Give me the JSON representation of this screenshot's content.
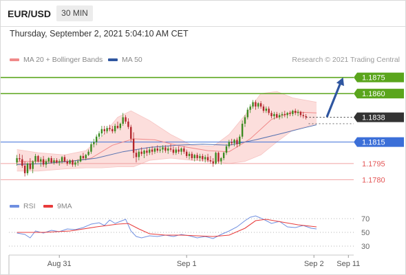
{
  "header": {
    "pair": "EUR/USD",
    "timeframe": "30 MIN"
  },
  "datetime": "Thursday, September 2, 2021 5:04:10 AM CET",
  "legend": {
    "ma20_label": "MA 20 + Bollinger Bands",
    "ma50_label": "MA 50",
    "ma20_color": "#f08a8a",
    "ma50_color": "#2f56a0"
  },
  "credit": "Research © 2021 Trading Central",
  "rsi_legend": {
    "rsi_label": "RSI",
    "ma_label": "9MA",
    "rsi_color": "#6f8fe0",
    "ma_color": "#e83b3b"
  },
  "chart_data": [
    {
      "type": "candlestick",
      "y_range": [
        1.177,
        1.1885
      ],
      "x_ticks": [
        {
          "label": "Aug 31",
          "x": 16
        },
        {
          "label": "Sep 1",
          "x": 64
        },
        {
          "label": "Sep 2",
          "x": 112
        },
        {
          "label": "Sep 11",
          "x": 125
        }
      ],
      "x_range": [
        -3,
        127
      ],
      "levels": [
        {
          "value": 1.1875,
          "label": "1.1875",
          "kind": "resistance",
          "color": "#5aa51c"
        },
        {
          "value": 1.186,
          "label": "1.1860",
          "kind": "resistance",
          "color": "#5aa51c"
        },
        {
          "value": 1.1838,
          "label": "1.1838",
          "kind": "last",
          "color": "#333333"
        },
        {
          "value": 1.1815,
          "label": "1.1815",
          "kind": "pivot",
          "color": "#3b6fd8"
        },
        {
          "value": 1.1795,
          "label": "1.1795",
          "kind": "support",
          "color": "#e35656"
        },
        {
          "value": 1.178,
          "label": "1.1780",
          "kind": "support",
          "color": "#e35656"
        }
      ],
      "target_arrow": {
        "from": [
          117,
          1.1839
        ],
        "to": [
          123,
          1.1875
        ]
      },
      "candles": [
        [
          1.1796,
          1.1803,
          1.1793,
          1.18
        ],
        [
          1.18,
          1.1804,
          1.1797,
          1.1799
        ],
        [
          1.1799,
          1.1803,
          1.1791,
          1.1793
        ],
        [
          1.1793,
          1.1797,
          1.1783,
          1.1786
        ],
        [
          1.1786,
          1.1796,
          1.1784,
          1.1795
        ],
        [
          1.1795,
          1.18,
          1.1789,
          1.179
        ],
        [
          1.179,
          1.1798,
          1.1786,
          1.1797
        ],
        [
          1.1797,
          1.1804,
          1.1795,
          1.1802
        ],
        [
          1.1802,
          1.1803,
          1.1796,
          1.1797
        ],
        [
          1.1797,
          1.1801,
          1.1792,
          1.1799
        ],
        [
          1.1799,
          1.1802,
          1.1792,
          1.1794
        ],
        [
          1.1794,
          1.1799,
          1.1791,
          1.1797
        ],
        [
          1.1797,
          1.1801,
          1.1795,
          1.18
        ],
        [
          1.18,
          1.1802,
          1.1795,
          1.1796
        ],
        [
          1.1796,
          1.18,
          1.1794,
          1.1798
        ],
        [
          1.1798,
          1.18,
          1.1795,
          1.1796
        ],
        [
          1.1796,
          1.1799,
          1.1793,
          1.1797
        ],
        [
          1.1797,
          1.1802,
          1.1795,
          1.1801
        ],
        [
          1.1801,
          1.1803,
          1.1796,
          1.1797
        ],
        [
          1.1797,
          1.1799,
          1.1793,
          1.1795
        ],
        [
          1.1795,
          1.1799,
          1.1794,
          1.1798
        ],
        [
          1.1798,
          1.1799,
          1.1792,
          1.1794
        ],
        [
          1.1794,
          1.1798,
          1.1792,
          1.1796
        ],
        [
          1.1796,
          1.1799,
          1.1793,
          1.1797
        ],
        [
          1.1797,
          1.1803,
          1.1796,
          1.1802
        ],
        [
          1.1802,
          1.1805,
          1.1799,
          1.18
        ],
        [
          1.18,
          1.1804,
          1.1798,
          1.1803
        ],
        [
          1.1803,
          1.1808,
          1.1802,
          1.1806
        ],
        [
          1.1806,
          1.1815,
          1.1804,
          1.1813
        ],
        [
          1.1813,
          1.1818,
          1.181,
          1.1815
        ],
        [
          1.1815,
          1.1822,
          1.1812,
          1.182
        ],
        [
          1.182,
          1.1825,
          1.1818,
          1.1823
        ],
        [
          1.1823,
          1.183,
          1.182,
          1.1827
        ],
        [
          1.1827,
          1.183,
          1.1822,
          1.1825
        ],
        [
          1.1825,
          1.183,
          1.1823,
          1.1828
        ],
        [
          1.1828,
          1.1831,
          1.1825,
          1.1827
        ],
        [
          1.1827,
          1.183,
          1.1823,
          1.1825
        ],
        [
          1.1825,
          1.1832,
          1.1823,
          1.183
        ],
        [
          1.183,
          1.1834,
          1.1827,
          1.1828
        ],
        [
          1.1828,
          1.1833,
          1.1826,
          1.1832
        ],
        [
          1.1832,
          1.1842,
          1.183,
          1.1838
        ],
        [
          1.1838,
          1.184,
          1.1832,
          1.1834
        ],
        [
          1.1834,
          1.1837,
          1.1827,
          1.1829
        ],
        [
          1.1829,
          1.1831,
          1.1815,
          1.1818
        ],
        [
          1.1818,
          1.1824,
          1.18,
          1.1805
        ],
        [
          1.1805,
          1.1808,
          1.1796,
          1.1801
        ],
        [
          1.1801,
          1.1808,
          1.1798,
          1.1806
        ],
        [
          1.1806,
          1.181,
          1.1802,
          1.1804
        ],
        [
          1.1804,
          1.1808,
          1.18,
          1.1807
        ],
        [
          1.1807,
          1.181,
          1.1802,
          1.1805
        ],
        [
          1.1805,
          1.181,
          1.1803,
          1.1808
        ],
        [
          1.1808,
          1.1811,
          1.1803,
          1.1806
        ],
        [
          1.1806,
          1.181,
          1.1804,
          1.1809
        ],
        [
          1.1809,
          1.1812,
          1.1805,
          1.1807
        ],
        [
          1.1807,
          1.1811,
          1.1805,
          1.1808
        ],
        [
          1.1808,
          1.1812,
          1.1805,
          1.181
        ],
        [
          1.181,
          1.1812,
          1.1805,
          1.1807
        ],
        [
          1.1807,
          1.1811,
          1.1804,
          1.1809
        ],
        [
          1.1809,
          1.1813,
          1.1806,
          1.1808
        ],
        [
          1.1808,
          1.1811,
          1.1803,
          1.1805
        ],
        [
          1.1805,
          1.181,
          1.1803,
          1.1808
        ],
        [
          1.1808,
          1.1811,
          1.1804,
          1.1806
        ],
        [
          1.1806,
          1.181,
          1.1803,
          1.1809
        ],
        [
          1.1809,
          1.1811,
          1.1804,
          1.1806
        ],
        [
          1.1806,
          1.1808,
          1.18,
          1.1802
        ],
        [
          1.1802,
          1.1806,
          1.1799,
          1.1804
        ],
        [
          1.1804,
          1.1806,
          1.1798,
          1.18
        ],
        [
          1.18,
          1.1804,
          1.1797,
          1.1803
        ],
        [
          1.1803,
          1.1805,
          1.1798,
          1.18
        ],
        [
          1.18,
          1.1804,
          1.1797,
          1.1802
        ],
        [
          1.1802,
          1.1804,
          1.1797,
          1.1799
        ],
        [
          1.1799,
          1.1803,
          1.1796,
          1.1801
        ],
        [
          1.1801,
          1.1804,
          1.1796,
          1.1798
        ],
        [
          1.1798,
          1.1802,
          1.1795,
          1.1797
        ],
        [
          1.1797,
          1.18,
          1.1792,
          1.1795
        ],
        [
          1.1795,
          1.1806,
          1.1794,
          1.1805
        ],
        [
          1.1805,
          1.1806,
          1.1795,
          1.1797
        ],
        [
          1.1797,
          1.1801,
          1.1794,
          1.18
        ],
        [
          1.18,
          1.1806,
          1.1798,
          1.1805
        ],
        [
          1.1805,
          1.1813,
          1.1803,
          1.1811
        ],
        [
          1.1811,
          1.1817,
          1.1809,
          1.1815
        ],
        [
          1.1815,
          1.1818,
          1.1812,
          1.1814
        ],
        [
          1.1814,
          1.1818,
          1.1811,
          1.1817
        ],
        [
          1.1817,
          1.1819,
          1.181,
          1.1813
        ],
        [
          1.1813,
          1.1822,
          1.1811,
          1.182
        ],
        [
          1.182,
          1.1835,
          1.1818,
          1.1832
        ],
        [
          1.1832,
          1.184,
          1.1829,
          1.1838
        ],
        [
          1.1838,
          1.1847,
          1.1836,
          1.1845
        ],
        [
          1.1845,
          1.185,
          1.1842,
          1.1848
        ],
        [
          1.1848,
          1.1854,
          1.1846,
          1.1852
        ],
        [
          1.1852,
          1.1854,
          1.1845,
          1.1848
        ],
        [
          1.1848,
          1.1852,
          1.1846,
          1.1851
        ],
        [
          1.1851,
          1.1853,
          1.1846,
          1.1848
        ],
        [
          1.1848,
          1.185,
          1.1842,
          1.1844
        ],
        [
          1.1844,
          1.1848,
          1.1842,
          1.1846
        ],
        [
          1.1846,
          1.1848,
          1.184,
          1.1842
        ],
        [
          1.1842,
          1.1844,
          1.1837,
          1.1839
        ],
        [
          1.1839,
          1.1843,
          1.1836,
          1.1841
        ],
        [
          1.1841,
          1.1843,
          1.1837,
          1.1838
        ],
        [
          1.1838,
          1.1842,
          1.1836,
          1.184
        ],
        [
          1.184,
          1.1843,
          1.1837,
          1.1841
        ],
        [
          1.1841,
          1.1844,
          1.1838,
          1.184
        ],
        [
          1.184,
          1.1843,
          1.1837,
          1.1842
        ],
        [
          1.1842,
          1.1844,
          1.1839,
          1.1841
        ],
        [
          1.1841,
          1.1845,
          1.1839,
          1.1844
        ],
        [
          1.1844,
          1.1846,
          1.184,
          1.1842
        ],
        [
          1.1842,
          1.1845,
          1.1839,
          1.1843
        ],
        [
          1.1843,
          1.1844,
          1.1838,
          1.184
        ],
        [
          1.184,
          1.1843,
          1.1837,
          1.1839
        ],
        [
          1.1839,
          1.1841,
          1.1836,
          1.1838
        ]
      ],
      "ma20": [
        [
          0,
          1.1797
        ],
        [
          10,
          1.1797
        ],
        [
          20,
          1.1797
        ],
        [
          28,
          1.18
        ],
        [
          36,
          1.1812
        ],
        [
          44,
          1.1818
        ],
        [
          52,
          1.1817
        ],
        [
          62,
          1.1811
        ],
        [
          72,
          1.1807
        ],
        [
          80,
          1.1806
        ],
        [
          88,
          1.1818
        ],
        [
          96,
          1.1836
        ],
        [
          104,
          1.1843
        ],
        [
          113,
          1.1842
        ]
      ],
      "ma50": [
        [
          0,
          1.1794
        ],
        [
          10,
          1.1795
        ],
        [
          20,
          1.1797
        ],
        [
          30,
          1.18
        ],
        [
          40,
          1.1806
        ],
        [
          50,
          1.181
        ],
        [
          60,
          1.1812
        ],
        [
          70,
          1.1813
        ],
        [
          80,
          1.1812
        ],
        [
          90,
          1.1817
        ],
        [
          100,
          1.1823
        ],
        [
          108,
          1.1828
        ],
        [
          113,
          1.1831
        ]
      ],
      "bb_upper": [
        [
          0,
          1.1808
        ],
        [
          8,
          1.1805
        ],
        [
          18,
          1.1803
        ],
        [
          26,
          1.1807
        ],
        [
          32,
          1.182
        ],
        [
          38,
          1.1838
        ],
        [
          43,
          1.1844
        ],
        [
          50,
          1.1835
        ],
        [
          58,
          1.1822
        ],
        [
          66,
          1.1812
        ],
        [
          74,
          1.1811
        ],
        [
          80,
          1.1822
        ],
        [
          86,
          1.184
        ],
        [
          92,
          1.186
        ],
        [
          98,
          1.1862
        ],
        [
          104,
          1.1856
        ],
        [
          113,
          1.1852
        ]
      ],
      "bb_lower": [
        [
          0,
          1.1788
        ],
        [
          8,
          1.1788
        ],
        [
          18,
          1.179
        ],
        [
          26,
          1.1791
        ],
        [
          32,
          1.1791
        ],
        [
          38,
          1.1792
        ],
        [
          44,
          1.1792
        ],
        [
          50,
          1.1798
        ],
        [
          58,
          1.18
        ],
        [
          66,
          1.1798
        ],
        [
          74,
          1.1797
        ],
        [
          80,
          1.1795
        ],
        [
          86,
          1.1797
        ],
        [
          92,
          1.1803
        ],
        [
          98,
          1.1815
        ],
        [
          104,
          1.1826
        ],
        [
          113,
          1.1832
        ]
      ]
    },
    {
      "type": "line",
      "name": "RSI panel",
      "y_ticks": [
        30,
        50,
        70
      ],
      "y_range": [
        20,
        80
      ],
      "series": [
        {
          "name": "RSI",
          "values": [
            [
              0,
              49
            ],
            [
              3,
              47
            ],
            [
              5,
              42
            ],
            [
              7,
              52
            ],
            [
              10,
              49
            ],
            [
              13,
              53
            ],
            [
              16,
              51
            ],
            [
              19,
              55
            ],
            [
              22,
              54
            ],
            [
              25,
              57
            ],
            [
              28,
              62
            ],
            [
              31,
              64
            ],
            [
              33,
              60
            ],
            [
              35,
              68
            ],
            [
              37,
              63
            ],
            [
              39,
              66
            ],
            [
              41,
              69
            ],
            [
              43,
              52
            ],
            [
              45,
              44
            ],
            [
              47,
              42
            ],
            [
              50,
              45
            ],
            [
              53,
              44
            ],
            [
              56,
              46
            ],
            [
              59,
              44
            ],
            [
              62,
              47
            ],
            [
              65,
              45
            ],
            [
              68,
              42
            ],
            [
              71,
              44
            ],
            [
              74,
              41
            ],
            [
              77,
              47
            ],
            [
              80,
              52
            ],
            [
              83,
              58
            ],
            [
              86,
              67
            ],
            [
              88,
              72
            ],
            [
              90,
              74
            ],
            [
              93,
              69
            ],
            [
              96,
              63
            ],
            [
              99,
              66
            ],
            [
              102,
              58
            ],
            [
              105,
              57
            ],
            [
              108,
              60
            ],
            [
              111,
              56
            ],
            [
              113,
              55
            ]
          ]
        },
        {
          "name": "9MA",
          "values": [
            [
              0,
              50
            ],
            [
              10,
              50
            ],
            [
              20,
              52
            ],
            [
              30,
              58
            ],
            [
              38,
              62
            ],
            [
              42,
              63
            ],
            [
              46,
              55
            ],
            [
              50,
              48
            ],
            [
              56,
              46
            ],
            [
              62,
              46
            ],
            [
              68,
              45
            ],
            [
              74,
              44
            ],
            [
              80,
              46
            ],
            [
              86,
              56
            ],
            [
              90,
              67
            ],
            [
              94,
              69
            ],
            [
              100,
              65
            ],
            [
              106,
              61
            ],
            [
              113,
              58
            ]
          ]
        }
      ]
    }
  ]
}
